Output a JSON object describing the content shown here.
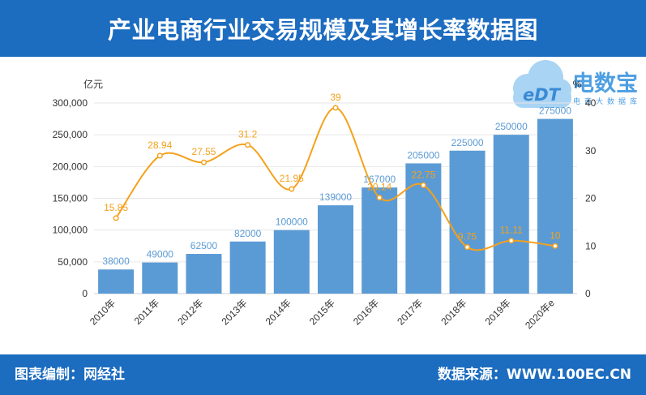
{
  "colors": {
    "banner": "#1c6cc0",
    "bar": "#5b9bd5",
    "bar_label": "#5b9bd5",
    "line": "#f4a11d",
    "line_label": "#f4a11d",
    "grid": "#e6e6e6",
    "axis": "#d0d0d0",
    "logo_text": "#4d9ee2",
    "logo_mark": "#3a8ad6",
    "logo_cloud": "#a9d4f4"
  },
  "logo": {
    "mark": "eDT",
    "name": "电数宝",
    "subtitle": "电商大数据库"
  },
  "footer": {
    "credit": "图表编制：网经社",
    "source": "数据来源：WWW.100EC.CN"
  },
  "chart_data": {
    "type": "bar",
    "title": "产业电商行业交易规模及其增长率数据图",
    "categories": [
      "2010年",
      "2011年",
      "2012年",
      "2013年",
      "2014年",
      "2015年",
      "2016年",
      "2017年",
      "2018年",
      "2019年",
      "2020年e"
    ],
    "series": [
      {
        "type": "bar",
        "axis": "left",
        "values": [
          38000,
          49000,
          62500,
          82000,
          100000,
          139000,
          167000,
          205000,
          225000,
          250000,
          275000
        ]
      },
      {
        "type": "line",
        "axis": "right",
        "smooth": true,
        "markers": true,
        "values": [
          15.85,
          28.94,
          27.55,
          31.2,
          21.95,
          39,
          20.14,
          22.75,
          9.75,
          11.11,
          10
        ]
      }
    ],
    "y_left": {
      "unit": "亿元",
      "range": [
        0,
        300000
      ],
      "ticks": [
        "0",
        "50,000",
        "100,000",
        "150,000",
        "200,000",
        "250,000",
        "300,000"
      ]
    },
    "y_right": {
      "unit": "%",
      "range": [
        0,
        40
      ],
      "ticks": [
        "0",
        "10",
        "20",
        "30",
        "40"
      ]
    },
    "xlabel": "",
    "grid": true,
    "data_labels": true
  }
}
